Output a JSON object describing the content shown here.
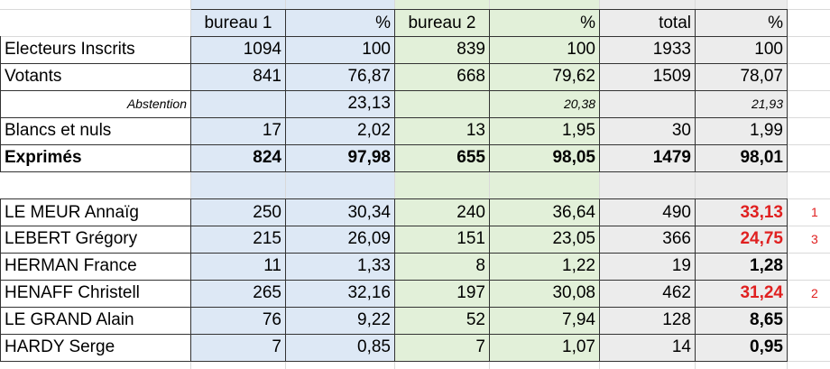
{
  "table": {
    "header": [
      "bureau 1",
      "%",
      "bureau 2",
      "%",
      "total",
      "%"
    ],
    "summary": [
      {
        "label": "Electeurs Inscrits",
        "cells": [
          "1094",
          "100",
          "839",
          "100",
          "1933",
          "100"
        ]
      },
      {
        "label": "Votants",
        "cells": [
          "841",
          "76,87",
          "668",
          "79,62",
          "1509",
          "78,07"
        ]
      },
      {
        "label": "Abstention",
        "cells": [
          null,
          "23,13",
          null,
          "20,38",
          null,
          "21,93"
        ]
      },
      {
        "label": "Blancs et nuls",
        "cells": [
          "17",
          "2,02",
          "13",
          "1,95",
          "30",
          "1,99"
        ]
      },
      {
        "label": "Exprimés",
        "cells": [
          "824",
          "97,98",
          "655",
          "98,05",
          "1479",
          "98,01"
        ]
      }
    ],
    "candidates": [
      {
        "label": "LE MEUR Annaïg",
        "cells": [
          "250",
          "30,34",
          "240",
          "36,64",
          "490",
          "33,13"
        ],
        "rank": 1
      },
      {
        "label": "LEBERT Grégory",
        "cells": [
          "215",
          "26,09",
          "151",
          "23,05",
          "366",
          "24,75"
        ],
        "rank": 3
      },
      {
        "label": "HERMAN France",
        "cells": [
          "11",
          "1,33",
          "8",
          "1,22",
          "19",
          "1,28"
        ]
      },
      {
        "label": "HENAFF Christell",
        "cells": [
          "265",
          "32,16",
          "197",
          "30,08",
          "462",
          "31,24"
        ],
        "rank": 2
      },
      {
        "label": "LE GRAND Alain",
        "cells": [
          "76",
          "9,22",
          "52",
          "7,94",
          "128",
          "8,65"
        ]
      },
      {
        "label": "HARDY Serge",
        "cells": [
          "7",
          "0,85",
          "7",
          "1,07",
          "14",
          "0,95"
        ]
      }
    ]
  }
}
